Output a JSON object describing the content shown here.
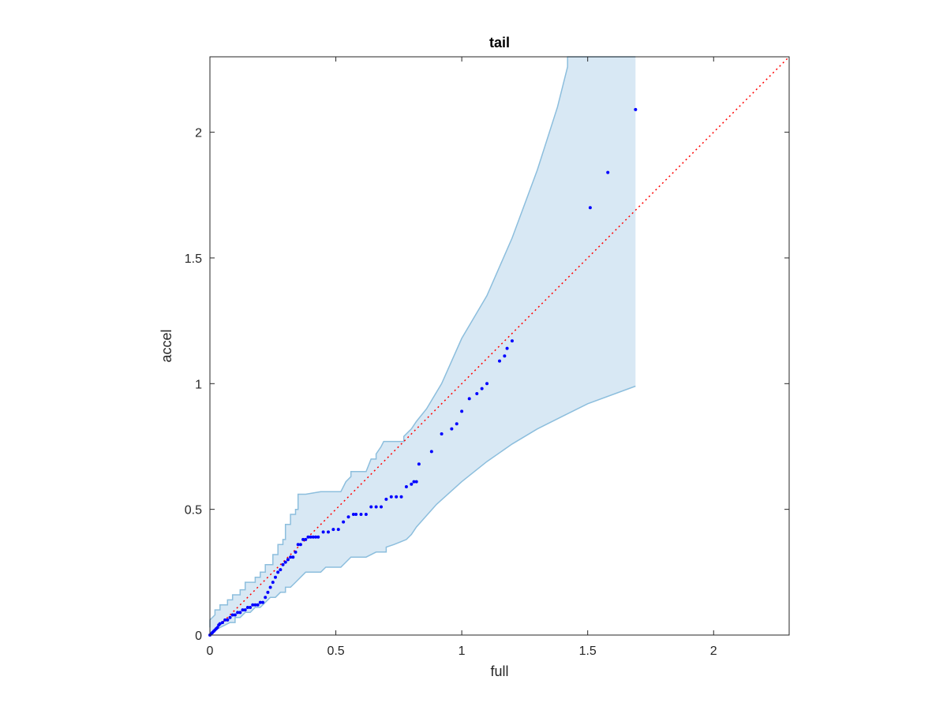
{
  "chart_data": {
    "type": "scatter",
    "title": "tail",
    "xlabel": "full",
    "ylabel": "accel",
    "xlim": [
      0,
      2.3
    ],
    "ylim": [
      0,
      2.3
    ],
    "x_ticks": [
      0,
      0.5,
      1,
      1.5,
      2
    ],
    "y_ticks": [
      0,
      0.5,
      1,
      1.5,
      2
    ],
    "x_tick_labels": [
      "0",
      "0.5",
      "1",
      "1.5",
      "2"
    ],
    "y_tick_labels": [
      "0",
      "0.5",
      "1",
      "1.5",
      "2"
    ],
    "grid": false,
    "colors": {
      "points": "#0000ff",
      "reference_line": "#ff0000",
      "band_fill": "#d8e8f4",
      "band_edge": "#8cbedd",
      "axes": "#262626"
    },
    "reference_line": {
      "x": [
        0,
        2.3
      ],
      "y": [
        0,
        2.3
      ],
      "style": "dotted"
    },
    "confidence_band": {
      "upper": [
        [
          0,
          0.03
        ],
        [
          0,
          0.06
        ],
        [
          0.02,
          0.08
        ],
        [
          0.02,
          0.1
        ],
        [
          0.04,
          0.1
        ],
        [
          0.04,
          0.12
        ],
        [
          0.07,
          0.12
        ],
        [
          0.07,
          0.14
        ],
        [
          0.09,
          0.14
        ],
        [
          0.09,
          0.16
        ],
        [
          0.12,
          0.16
        ],
        [
          0.12,
          0.18
        ],
        [
          0.14,
          0.18
        ],
        [
          0.14,
          0.21
        ],
        [
          0.18,
          0.21
        ],
        [
          0.18,
          0.23
        ],
        [
          0.2,
          0.23
        ],
        [
          0.2,
          0.25
        ],
        [
          0.22,
          0.25
        ],
        [
          0.22,
          0.28
        ],
        [
          0.25,
          0.28
        ],
        [
          0.25,
          0.32
        ],
        [
          0.27,
          0.32
        ],
        [
          0.27,
          0.36
        ],
        [
          0.29,
          0.36
        ],
        [
          0.29,
          0.38
        ],
        [
          0.3,
          0.38
        ],
        [
          0.3,
          0.44
        ],
        [
          0.32,
          0.44
        ],
        [
          0.32,
          0.48
        ],
        [
          0.34,
          0.48
        ],
        [
          0.34,
          0.5
        ],
        [
          0.35,
          0.5
        ],
        [
          0.35,
          0.56
        ],
        [
          0.38,
          0.56
        ],
        [
          0.44,
          0.57
        ],
        [
          0.52,
          0.57
        ],
        [
          0.54,
          0.61
        ],
        [
          0.56,
          0.63
        ],
        [
          0.56,
          0.65
        ],
        [
          0.62,
          0.65
        ],
        [
          0.64,
          0.7
        ],
        [
          0.66,
          0.7
        ],
        [
          0.66,
          0.72
        ],
        [
          0.68,
          0.75
        ],
        [
          0.69,
          0.77
        ],
        [
          0.77,
          0.77
        ],
        [
          0.77,
          0.79
        ],
        [
          0.8,
          0.82
        ],
        [
          0.82,
          0.85
        ],
        [
          0.86,
          0.9
        ],
        [
          0.92,
          1.0
        ],
        [
          1.0,
          1.18
        ],
        [
          1.1,
          1.35
        ],
        [
          1.2,
          1.58
        ],
        [
          1.3,
          1.85
        ],
        [
          1.38,
          2.1
        ],
        [
          1.42,
          2.26
        ],
        [
          1.42,
          2.3
        ],
        [
          1.69,
          2.3
        ]
      ],
      "lower": [
        [
          1.69,
          0.99
        ],
        [
          1.5,
          0.92
        ],
        [
          1.4,
          0.87
        ],
        [
          1.3,
          0.82
        ],
        [
          1.2,
          0.76
        ],
        [
          1.1,
          0.69
        ],
        [
          1.0,
          0.61
        ],
        [
          0.9,
          0.52
        ],
        [
          0.82,
          0.43
        ],
        [
          0.8,
          0.4
        ],
        [
          0.78,
          0.38
        ],
        [
          0.73,
          0.36
        ],
        [
          0.7,
          0.35
        ],
        [
          0.7,
          0.33
        ],
        [
          0.66,
          0.33
        ],
        [
          0.62,
          0.31
        ],
        [
          0.56,
          0.31
        ],
        [
          0.54,
          0.29
        ],
        [
          0.52,
          0.27
        ],
        [
          0.46,
          0.27
        ],
        [
          0.44,
          0.25
        ],
        [
          0.38,
          0.25
        ],
        [
          0.36,
          0.23
        ],
        [
          0.34,
          0.21
        ],
        [
          0.32,
          0.19
        ],
        [
          0.3,
          0.19
        ],
        [
          0.3,
          0.17
        ],
        [
          0.28,
          0.17
        ],
        [
          0.26,
          0.15
        ],
        [
          0.24,
          0.15
        ],
        [
          0.22,
          0.13
        ],
        [
          0.2,
          0.11
        ],
        [
          0.18,
          0.11
        ],
        [
          0.16,
          0.09
        ],
        [
          0.14,
          0.09
        ],
        [
          0.12,
          0.07
        ],
        [
          0.1,
          0.07
        ],
        [
          0.1,
          0.05
        ],
        [
          0.08,
          0.05
        ],
        [
          0.06,
          0.04
        ],
        [
          0.04,
          0.03
        ],
        [
          0.02,
          0.02
        ],
        [
          0.01,
          0.01
        ],
        [
          0,
          0
        ]
      ]
    },
    "series": [
      {
        "x": [
          0,
          0.005,
          0.01,
          0.015,
          0.02,
          0.025,
          0.03,
          0.035,
          0.04,
          0.05,
          0.06,
          0.07,
          0.08,
          0.09,
          0.1,
          0.11,
          0.12,
          0.13,
          0.14,
          0.15,
          0.16,
          0.17,
          0.18,
          0.19,
          0.2,
          0.21,
          0.22,
          0.23,
          0.24,
          0.25,
          0.26,
          0.27,
          0.28,
          0.29,
          0.3,
          0.31,
          0.32,
          0.33,
          0.34,
          0.35,
          0.36,
          0.37,
          0.38,
          0.39,
          0.4,
          0.41,
          0.42,
          0.43,
          0.45,
          0.47,
          0.49,
          0.51,
          0.53,
          0.55,
          0.57,
          0.58,
          0.6,
          0.62,
          0.64,
          0.66,
          0.68,
          0.7,
          0.72,
          0.74,
          0.76,
          0.78,
          0.8,
          0.81,
          0.82,
          0.83,
          0.88,
          0.92,
          0.96,
          0.98,
          1.0,
          1.03,
          1.06,
          1.08,
          1.1,
          1.15,
          1.17,
          1.18,
          1.2,
          1.51,
          1.58,
          1.69
        ],
        "y": [
          0,
          0.005,
          0.01,
          0.015,
          0.02,
          0.025,
          0.03,
          0.04,
          0.045,
          0.05,
          0.06,
          0.06,
          0.07,
          0.08,
          0.08,
          0.09,
          0.09,
          0.1,
          0.1,
          0.11,
          0.11,
          0.12,
          0.12,
          0.12,
          0.13,
          0.13,
          0.15,
          0.17,
          0.19,
          0.21,
          0.23,
          0.25,
          0.26,
          0.28,
          0.29,
          0.3,
          0.31,
          0.31,
          0.33,
          0.36,
          0.36,
          0.38,
          0.38,
          0.39,
          0.39,
          0.39,
          0.39,
          0.39,
          0.41,
          0.41,
          0.42,
          0.42,
          0.45,
          0.47,
          0.48,
          0.48,
          0.48,
          0.48,
          0.51,
          0.51,
          0.51,
          0.54,
          0.55,
          0.55,
          0.55,
          0.59,
          0.6,
          0.61,
          0.61,
          0.68,
          0.73,
          0.8,
          0.82,
          0.84,
          0.89,
          0.94,
          0.96,
          0.98,
          1.0,
          1.09,
          1.11,
          1.14,
          1.17,
          1.7,
          1.84,
          2.09
        ]
      }
    ]
  }
}
